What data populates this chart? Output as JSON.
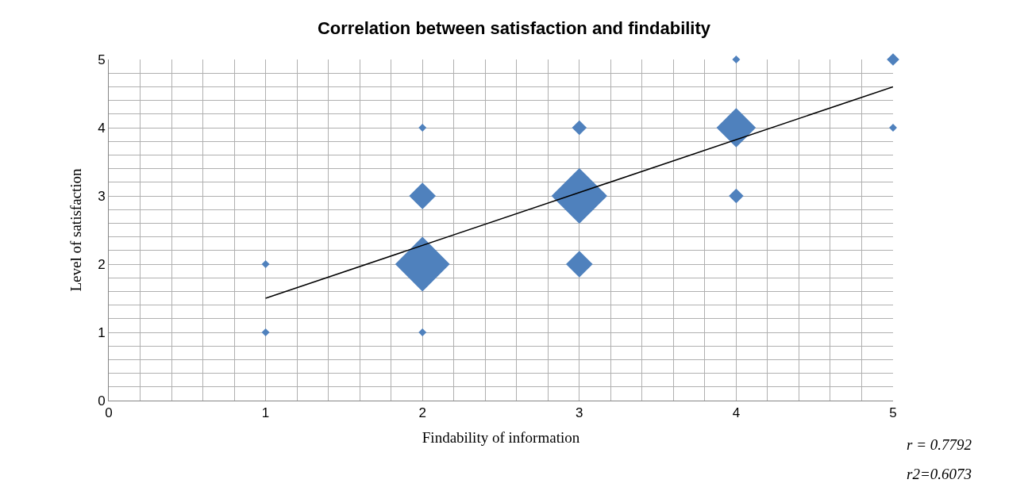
{
  "chart_data": {
    "type": "bubble",
    "title": "Correlation between satisfaction and findability",
    "xlabel": "Findability of information",
    "ylabel": "Level of satisfaction",
    "marker": "diamond",
    "grid": true,
    "legend": false,
    "xlim": [
      0,
      5
    ],
    "ylim": [
      0,
      5
    ],
    "xticks": [
      0,
      {
        "value": 0.2,
        "label": null
      },
      {
        "value": 0.4,
        "label": null
      },
      {
        "value": 0.6,
        "label": null
      },
      {
        "value": 0.8,
        "label": null
      },
      1,
      {
        "value": 1.2,
        "label": null
      },
      {
        "value": 1.4,
        "label": null
      },
      {
        "value": 1.6,
        "label": null
      },
      {
        "value": 1.8,
        "label": null
      },
      2,
      {
        "value": 2.2,
        "label": null
      },
      {
        "value": 2.4,
        "label": null
      },
      {
        "value": 2.6,
        "label": null
      },
      {
        "value": 2.8,
        "label": null
      },
      3,
      {
        "value": 3.2,
        "label": null
      },
      {
        "value": 3.4,
        "label": null
      },
      {
        "value": 3.6,
        "label": null
      },
      {
        "value": 3.8,
        "label": null
      },
      4,
      {
        "value": 4.2,
        "label": null
      },
      {
        "value": 4.4,
        "label": null
      },
      {
        "value": 4.6,
        "label": null
      },
      {
        "value": 4.8,
        "label": null
      },
      5
    ],
    "yticks": [
      0,
      {
        "value": 0.2,
        "label": null
      },
      {
        "value": 0.4,
        "label": null
      },
      {
        "value": 0.6,
        "label": null
      },
      {
        "value": 0.8,
        "label": null
      },
      1,
      {
        "value": 1.2,
        "label": null
      },
      {
        "value": 1.4,
        "label": null
      },
      {
        "value": 1.6,
        "label": null
      },
      {
        "value": 1.8,
        "label": null
      },
      2,
      {
        "value": 2.2,
        "label": null
      },
      {
        "value": 2.4,
        "label": null
      },
      {
        "value": 2.6,
        "label": null
      },
      {
        "value": 2.8,
        "label": null
      },
      3,
      {
        "value": 3.2,
        "label": null
      },
      {
        "value": 3.4,
        "label": null
      },
      {
        "value": 3.6,
        "label": null
      },
      {
        "value": 3.8,
        "label": null
      },
      4,
      {
        "value": 4.2,
        "label": null
      },
      {
        "value": 4.4,
        "label": null
      },
      {
        "value": 4.6,
        "label": null
      },
      {
        "value": 4.8,
        "label": null
      },
      5
    ],
    "series": [
      {
        "color": "#4f81bd",
        "x": [
          1,
          1,
          2,
          2,
          2,
          2,
          3,
          3,
          3,
          4,
          4,
          4,
          5,
          5
        ],
        "values": [
          1,
          2,
          1,
          2,
          3,
          4,
          2,
          3,
          4,
          3,
          4,
          5,
          4,
          5
        ],
        "sizes": [
          0.02,
          0.02,
          0.02,
          0.96,
          0.23,
          0.02,
          0.23,
          1,
          0.07,
          0.07,
          0.5,
          0.02,
          0.02,
          0.05
        ]
      },
      {
        "type": "line",
        "color": "#000000",
        "x": [
          1,
          5
        ],
        "values": [
          1.5,
          4.6
        ],
        "marker": "none"
      }
    ],
    "annotations": [
      "r = 0.7792",
      "r2=0.6073"
    ]
  }
}
